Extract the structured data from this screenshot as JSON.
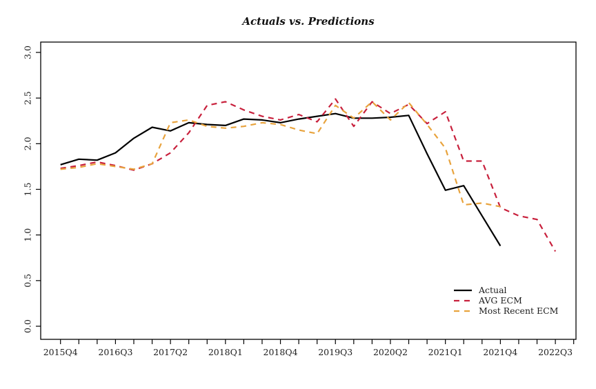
{
  "title": "Actuals vs. Predictions",
  "chart_data": {
    "type": "line",
    "x_labels": [
      "2015Q4",
      "2016Q1",
      "2016Q2",
      "2016Q3",
      "2016Q4",
      "2017Q1",
      "2017Q2",
      "2017Q3",
      "2017Q4",
      "2018Q1",
      "2018Q2",
      "2018Q3",
      "2018Q4",
      "2019Q1",
      "2019Q2",
      "2019Q3",
      "2019Q4",
      "2020Q1",
      "2020Q2",
      "2020Q3",
      "2020Q4",
      "2021Q1",
      "2021Q2",
      "2021Q3",
      "2021Q4",
      "2022Q1",
      "2022Q2",
      "2022Q3"
    ],
    "x_tick_labels_shown": [
      "2015Q4",
      "2016Q3",
      "2017Q2",
      "2018Q1",
      "2018Q4",
      "2019Q3",
      "2020Q2",
      "2021Q1",
      "2021Q4",
      "2022Q3"
    ],
    "x_label_every": 3,
    "y_ticks": [
      "0.0",
      "0.5",
      "1.0",
      "1.5",
      "2.0",
      "2.5",
      "3.0"
    ],
    "ylim": [
      0.0,
      3.0
    ],
    "grid": false,
    "legend_position": "bottom-right",
    "series": [
      {
        "name": "Actual",
        "color": "#000000",
        "line_style": "solid",
        "values": [
          1.77,
          1.83,
          1.82,
          1.9,
          2.06,
          2.18,
          2.14,
          2.23,
          2.21,
          2.2,
          2.27,
          2.26,
          2.23,
          2.27,
          2.3,
          2.33,
          2.28,
          2.28,
          2.29,
          2.31,
          1.89,
          1.49,
          1.54,
          1.21,
          0.88
        ]
      },
      {
        "name": "AVG ECM",
        "color": "#c8203c",
        "line_style": "dashed",
        "values": [
          1.73,
          1.76,
          1.8,
          1.76,
          1.71,
          1.78,
          1.9,
          2.12,
          2.42,
          2.46,
          2.37,
          2.3,
          2.26,
          2.32,
          2.24,
          2.49,
          2.19,
          2.46,
          2.33,
          2.43,
          2.22,
          2.35,
          1.81,
          1.81,
          1.3,
          1.21,
          1.17,
          0.82
        ]
      },
      {
        "name": "Most Recent ECM",
        "color": "#e8a33d",
        "line_style": "dashed",
        "values": [
          1.72,
          1.74,
          1.78,
          1.75,
          1.72,
          1.78,
          2.23,
          2.26,
          2.19,
          2.17,
          2.19,
          2.23,
          2.21,
          2.15,
          2.11,
          2.42,
          2.28,
          2.46,
          2.26,
          2.45,
          2.21,
          1.95,
          1.33,
          1.35,
          1.31
        ]
      }
    ]
  }
}
